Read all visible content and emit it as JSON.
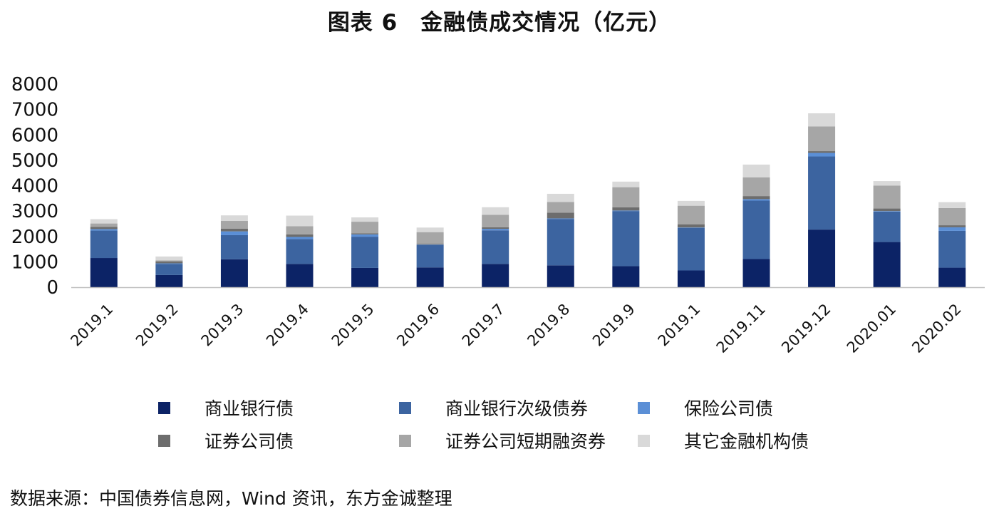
{
  "chart_data": {
    "type": "bar",
    "stacked": true,
    "title": "图表 6　金融债成交情况（亿元）",
    "categories": [
      "2019.1",
      "2019.2",
      "2019.3",
      "2019.4",
      "2019.5",
      "2019.6",
      "2019.7",
      "2019.8",
      "2019.9",
      "2019.1",
      "2019.11",
      "2019.12",
      "2020.01",
      "2020.02"
    ],
    "ylim": [
      0,
      8000
    ],
    "yticks": [
      "0",
      "1000",
      "2000",
      "3000",
      "4000",
      "5000",
      "6000",
      "7000",
      "8000"
    ],
    "ytick_values": [
      0,
      1000,
      2000,
      3000,
      4000,
      5000,
      6000,
      7000,
      8000
    ],
    "grid": false,
    "legend_position": "bottom",
    "series": [
      {
        "name": "商业银行债",
        "color": "#0c2366",
        "values": [
          1150,
          480,
          1100,
          920,
          760,
          780,
          920,
          860,
          830,
          660,
          1110,
          2270,
          1780,
          770
        ]
      },
      {
        "name": "商业银行次级债券",
        "color": "#3c64a0",
        "values": [
          1080,
          440,
          950,
          980,
          1230,
          880,
          1320,
          1830,
          2170,
          1670,
          2300,
          2880,
          1200,
          1450
        ]
      },
      {
        "name": "保险公司债",
        "color": "#5b8fd6",
        "values": [
          60,
          20,
          150,
          80,
          90,
          20,
          60,
          20,
          20,
          20,
          60,
          140,
          20,
          140
        ]
      },
      {
        "name": "证券公司债",
        "color": "#6d6d6d",
        "values": [
          90,
          80,
          110,
          100,
          40,
          40,
          60,
          230,
          130,
          130,
          120,
          70,
          100,
          80
        ]
      },
      {
        "name": "证券公司短期融资券",
        "color": "#a6a6a6",
        "values": [
          130,
          40,
          300,
          320,
          460,
          450,
          490,
          420,
          790,
          730,
          740,
          970,
          900,
          680
        ]
      },
      {
        "name": "其它金融机构债",
        "color": "#d9d9d9",
        "values": [
          170,
          150,
          220,
          420,
          170,
          180,
          300,
          320,
          220,
          190,
          500,
          520,
          180,
          230
        ]
      }
    ]
  },
  "source_note": "数据来源：中国债券信息网，Wind 资讯，东方金诚整理"
}
